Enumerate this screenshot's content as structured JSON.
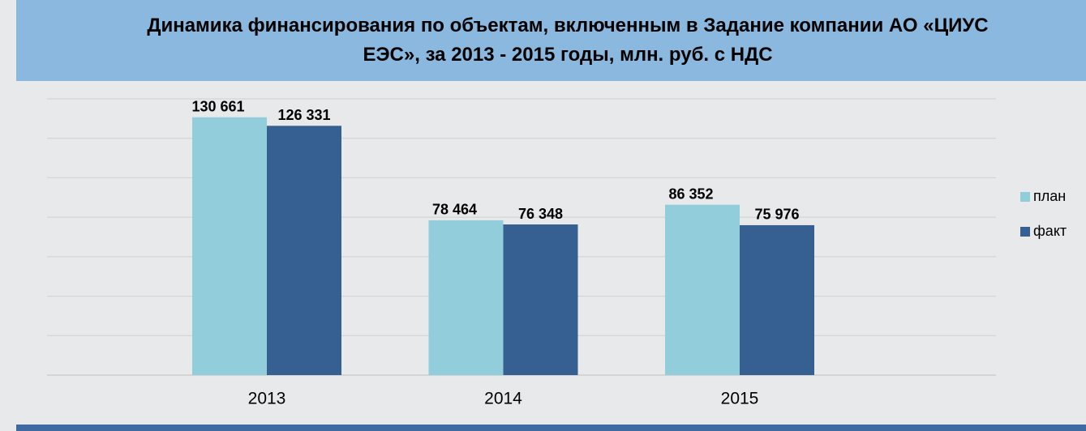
{
  "chart_data": {
    "type": "bar",
    "title": "Динамика финансирования по объектам, включенным в Задание компании АО «ЦИУС ЕЭС», за 2013 - 2015 годы, млн. руб. с НДС",
    "categories": [
      "2013",
      "2014",
      "2015"
    ],
    "series": [
      {
        "name": "план",
        "color": "#92cddc",
        "values": [
          130661,
          78464,
          86352
        ],
        "value_labels": [
          "130 661",
          "78 464",
          "86 352"
        ]
      },
      {
        "name": "факт",
        "color": "#366092",
        "values": [
          126331,
          76348,
          75976
        ],
        "value_labels": [
          "126 331",
          "76 348",
          "75 976"
        ]
      }
    ],
    "ylim": [
      0,
      140000
    ],
    "yticks": [
      0,
      20000,
      40000,
      60000,
      80000,
      100000,
      120000,
      140000
    ],
    "grid": true,
    "legend": "right"
  }
}
